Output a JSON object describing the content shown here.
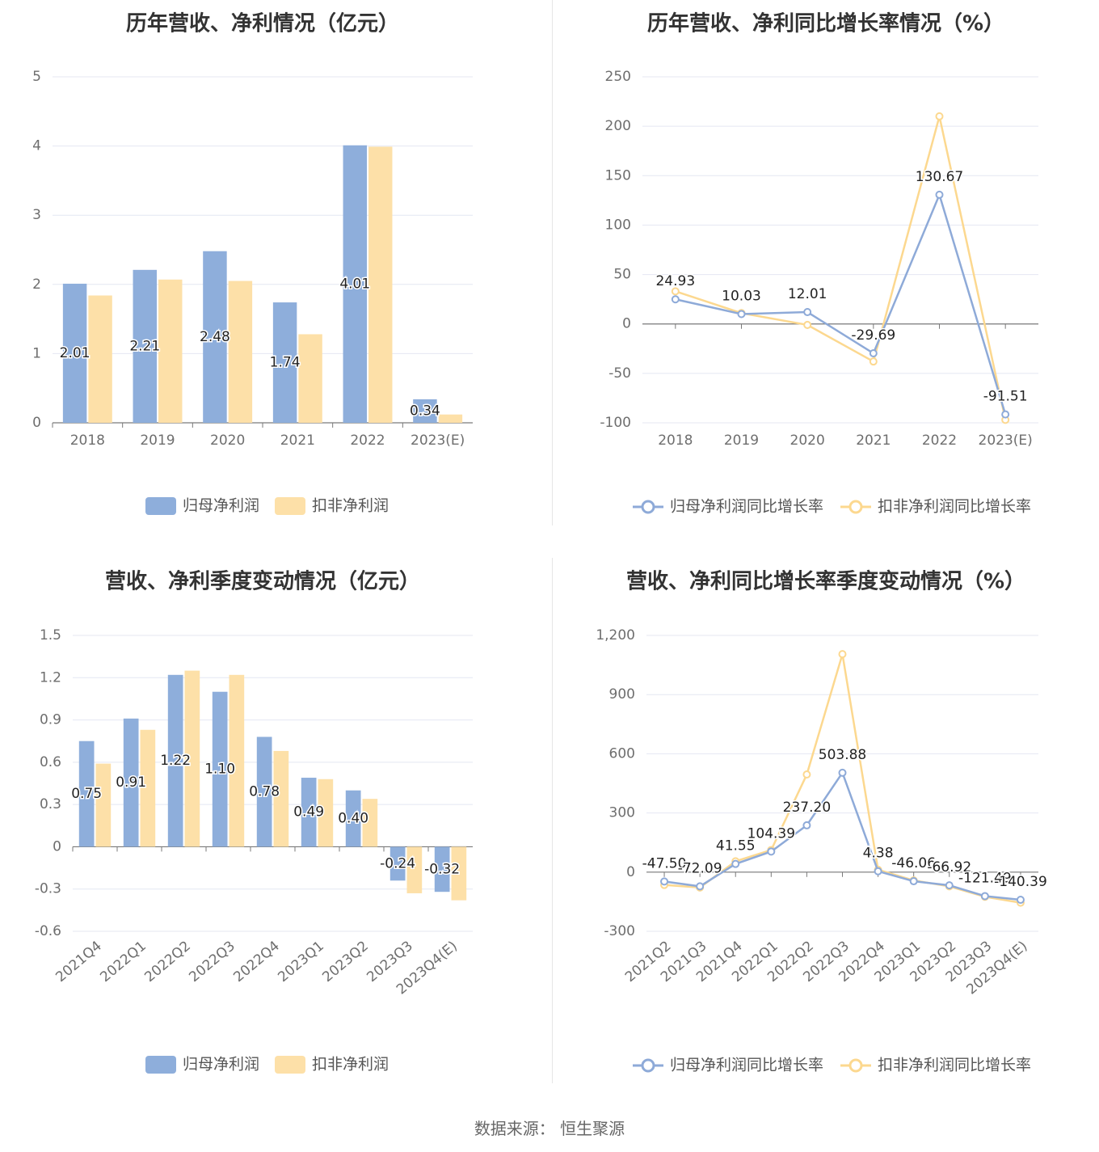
{
  "source": "数据来源：  恒生聚源",
  "colors": {
    "blue": "#8eaedb",
    "orange": "#fde0a8",
    "line_blue": "#8eaad8",
    "line_orange": "#fcd88f",
    "grid": "#e4e7f2",
    "axis": "#7a7a7a"
  },
  "chart_data": [
    {
      "type": "bar",
      "title": "历年营收、净利情况（亿元）",
      "categories": [
        "2018",
        "2019",
        "2020",
        "2021",
        "2022",
        "2023(E)"
      ],
      "series": [
        {
          "name": "归母净利润",
          "values": [
            2.01,
            2.21,
            2.48,
            1.74,
            4.01,
            0.34
          ]
        },
        {
          "name": "扣非净利润",
          "values": [
            1.84,
            2.07,
            2.05,
            1.28,
            3.99,
            0.12
          ]
        }
      ],
      "labels": [
        "2.01",
        "2.21",
        "2.48",
        "1.74",
        "4.01",
        "0.34"
      ],
      "yticks": [
        "0",
        "1",
        "2",
        "3",
        "4",
        "5"
      ],
      "ylim": [
        0,
        5
      ]
    },
    {
      "type": "line",
      "title": "历年营收、净利同比增长率情况（%）",
      "categories": [
        "2018",
        "2019",
        "2020",
        "2021",
        "2022",
        "2023(E)"
      ],
      "series": [
        {
          "name": "归母净利润同比增长率",
          "values": [
            24.93,
            10.03,
            12.01,
            -29.69,
            130.67,
            -91.51
          ]
        },
        {
          "name": "扣非净利润同比增长率",
          "values": [
            33,
            11,
            -1,
            -38,
            210,
            -97
          ]
        }
      ],
      "labels": [
        "24.93",
        "10.03",
        "12.01",
        "-29.69",
        "130.67",
        "-91.51"
      ],
      "yticks": [
        "-100",
        "-50",
        "0",
        "50",
        "100",
        "150",
        "200",
        "250"
      ],
      "ylim": [
        -100,
        250
      ]
    },
    {
      "type": "bar",
      "title": "营收、净利季度变动情况（亿元）",
      "categories": [
        "2021Q4",
        "2022Q1",
        "2022Q2",
        "2022Q3",
        "2022Q4",
        "2023Q1",
        "2023Q2",
        "2023Q3",
        "2023Q4(E)"
      ],
      "series": [
        {
          "name": "归母净利润",
          "values": [
            0.75,
            0.91,
            1.22,
            1.1,
            0.78,
            0.49,
            0.4,
            -0.24,
            -0.32
          ]
        },
        {
          "name": "扣非净利润",
          "values": [
            0.59,
            0.83,
            1.25,
            1.22,
            0.68,
            0.48,
            0.34,
            -0.33,
            -0.38
          ]
        }
      ],
      "labels": [
        "0.75",
        "0.91",
        "1.22",
        "1.10",
        "0.78",
        "0.49",
        "0.40",
        "-0.24",
        "-0.32"
      ],
      "yticks": [
        "-0.6",
        "-0.3",
        "0",
        "0.3",
        "0.6",
        "0.9",
        "1.2",
        "1.5"
      ],
      "ylim": [
        -0.6,
        1.5
      ]
    },
    {
      "type": "line",
      "title": "营收、净利同比增长率季度变动情况（%）",
      "categories": [
        "2021Q2",
        "2021Q3",
        "2021Q4",
        "2022Q1",
        "2022Q2",
        "2022Q3",
        "2022Q4",
        "2023Q1",
        "2023Q2",
        "2023Q3",
        "2023Q4(E)"
      ],
      "series": [
        {
          "name": "归母净利润同比增长率",
          "values": [
            -47.5,
            -72.09,
            41.55,
            104.39,
            237.2,
            503.88,
            4.38,
            -46.06,
            -66.92,
            -121.49,
            -140.39
          ]
        },
        {
          "name": "扣非净利润同比增长率",
          "values": [
            -65,
            -78,
            55,
            112,
            495,
            1105,
            12,
            -42,
            -72,
            -125,
            -155
          ]
        }
      ],
      "labels": [
        "-47.50",
        "-72.09",
        "41.55",
        "104.39",
        "237.20",
        "503.88",
        "4.38",
        "-46.06",
        "-66.92",
        "-121.49",
        "-140.39"
      ],
      "yticks": [
        "-300",
        "0",
        "300",
        "600",
        "900",
        "1,200"
      ],
      "ylim": [
        -300,
        1200
      ]
    }
  ]
}
